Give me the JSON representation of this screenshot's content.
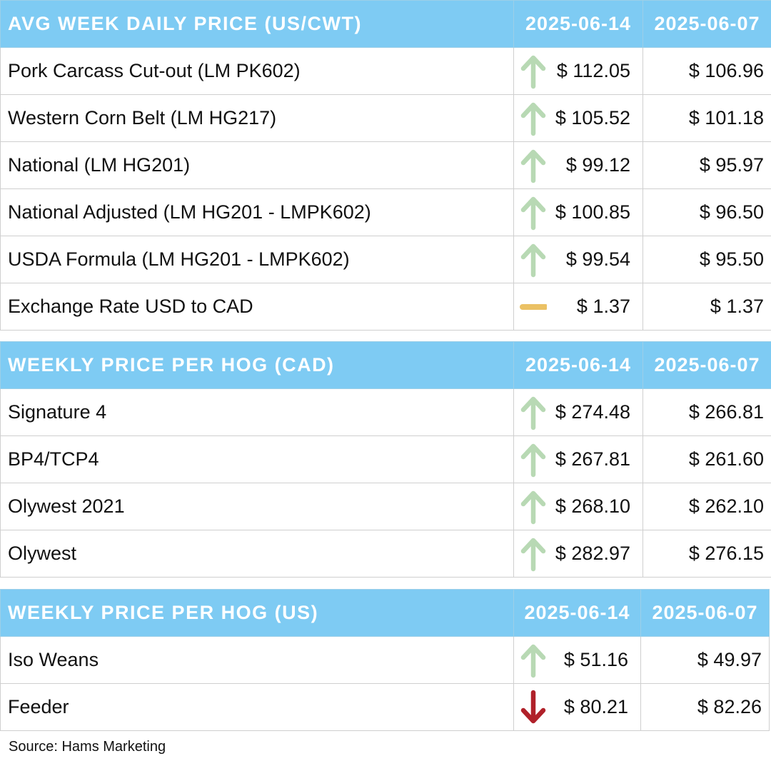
{
  "tables": [
    {
      "header": {
        "title": "AVG WEEK DAILY PRICE (US/CWT)",
        "date1": "2025-06-14",
        "date2": "2025-06-07"
      },
      "rows": [
        {
          "label": "Pork Carcass Cut-out (LM PK602)",
          "trend": "up",
          "current": "$ 112.05",
          "previous": "$ 106.96"
        },
        {
          "label": "Western Corn Belt (LM HG217)",
          "trend": "up",
          "current": "$ 105.52",
          "previous": "$ 101.18"
        },
        {
          "label": "National (LM HG201)",
          "trend": "up",
          "current": "$ 99.12",
          "previous": "$ 95.97"
        },
        {
          "label": "National Adjusted (LM HG201 - LMPK602)",
          "trend": "up",
          "current": "$ 100.85",
          "previous": "$ 96.50"
        },
        {
          "label": "USDA Formula (LM HG201 - LMPK602)",
          "trend": "up",
          "current": "$ 99.54",
          "previous": "$ 95.50"
        },
        {
          "label": "Exchange Rate USD to CAD",
          "trend": "flat",
          "current": "$ 1.37",
          "previous": "$ 1.37"
        }
      ]
    },
    {
      "header": {
        "title": "WEEKLY PRICE PER HOG (CAD)",
        "date1": "2025-06-14",
        "date2": "2025-06-07"
      },
      "rows": [
        {
          "label": "Signature 4",
          "trend": "up",
          "current": "$ 274.48",
          "previous": "$ 266.81"
        },
        {
          "label": "BP4/TCP4",
          "trend": "up",
          "current": "$ 267.81",
          "previous": "$ 261.60"
        },
        {
          "label": "Olywest 2021",
          "trend": "up",
          "current": "$ 268.10",
          "previous": "$ 262.10"
        },
        {
          "label": "Olywest",
          "trend": "up",
          "current": "$ 282.97",
          "previous": "$ 276.15"
        }
      ]
    },
    {
      "header": {
        "title": "WEEKLY PRICE PER HOG (US)",
        "date1": "2025-06-14",
        "date2": "2025-06-07"
      },
      "rows": [
        {
          "label": "Iso Weans",
          "trend": "up",
          "current": "$ 51.16",
          "previous": "$ 49.97"
        },
        {
          "label": "Feeder",
          "trend": "down",
          "current": "$ 80.21",
          "previous": "$ 82.26"
        }
      ]
    }
  ],
  "source": "Source: Hams Marketing",
  "colors": {
    "header_bg": "#7ecbf3",
    "up_arrow": "#b8d9b4",
    "down_arrow": "#b0212a",
    "flat_dash": "#ebc164"
  },
  "icons": {
    "up": "arrow-up-icon",
    "down": "arrow-down-icon",
    "flat": "flat-dash-icon"
  }
}
